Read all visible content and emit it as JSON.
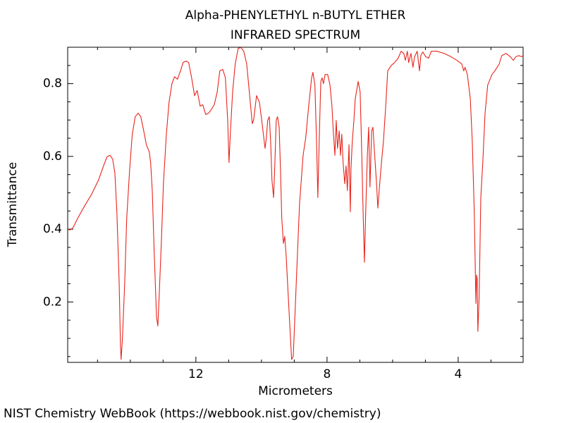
{
  "chart_data": {
    "type": "line",
    "title": "Alpha-PHENYLETHYL n-BUTYL ETHER",
    "subtitle": "INFRARED SPECTRUM",
    "xlabel": "Micrometers",
    "ylabel": "Transmittance",
    "source": "NIST Chemistry WebBook (https://webbook.nist.gov/chemistry)",
    "color": "#e8241c",
    "xlim": [
      15.91,
      2.02
    ],
    "ylim": [
      0.034,
      0.9
    ],
    "xticks": [
      12,
      8,
      4
    ],
    "yticks": [
      0.2,
      0.4,
      0.6,
      0.8
    ],
    "xminorticks": [
      15,
      14,
      13,
      11,
      10,
      9,
      7,
      6,
      5,
      3
    ],
    "yminorticks": [
      0.05,
      0.1,
      0.15,
      0.25,
      0.3,
      0.35,
      0.45,
      0.5,
      0.55,
      0.65,
      0.7,
      0.75,
      0.85
    ],
    "x": [
      15.91,
      15.83,
      15.74,
      15.61,
      15.4,
      15.18,
      14.97,
      14.8,
      14.71,
      14.62,
      14.54,
      14.47,
      14.41,
      14.34,
      14.3,
      14.28,
      14.24,
      14.17,
      14.11,
      14.02,
      13.94,
      13.85,
      13.76,
      13.68,
      13.59,
      13.51,
      13.42,
      13.38,
      13.33,
      13.27,
      13.2,
      13.16,
      13.12,
      13.05,
      12.99,
      12.9,
      12.82,
      12.73,
      12.65,
      12.56,
      12.47,
      12.39,
      12.3,
      12.22,
      12.13,
      12.04,
      11.96,
      11.87,
      11.79,
      11.7,
      11.61,
      11.53,
      11.44,
      11.35,
      11.27,
      11.18,
      11.1,
      11.03,
      10.99,
      10.95,
      10.88,
      10.8,
      10.71,
      10.62,
      10.54,
      10.45,
      10.37,
      10.28,
      10.24,
      10.15,
      10.06,
      9.98,
      9.89,
      9.85,
      9.81,
      9.76,
      9.72,
      9.68,
      9.63,
      9.59,
      9.55,
      9.51,
      9.46,
      9.42,
      9.38,
      9.33,
      9.29,
      9.25,
      9.16,
      9.08,
      9.03,
      8.99,
      8.92,
      8.84,
      8.73,
      8.65,
      8.56,
      8.47,
      8.43,
      8.37,
      8.32,
      8.28,
      8.24,
      8.19,
      8.15,
      8.11,
      8.06,
      7.98,
      7.91,
      7.85,
      7.81,
      7.76,
      7.72,
      7.68,
      7.63,
      7.59,
      7.55,
      7.51,
      7.46,
      7.42,
      7.38,
      7.33,
      7.29,
      7.27,
      7.23,
      7.18,
      7.14,
      7.05,
      6.99,
      6.95,
      6.9,
      6.86,
      6.82,
      6.77,
      6.73,
      6.69,
      6.64,
      6.6,
      6.56,
      6.49,
      6.45,
      6.41,
      6.34,
      6.28,
      6.21,
      6.15,
      6.04,
      5.94,
      5.83,
      5.74,
      5.66,
      5.61,
      5.55,
      5.51,
      5.44,
      5.38,
      5.33,
      5.25,
      5.18,
      5.14,
      5.08,
      4.99,
      4.9,
      4.82,
      4.65,
      4.43,
      4.22,
      4.04,
      3.89,
      3.83,
      3.79,
      3.72,
      3.63,
      3.57,
      3.51,
      3.46,
      3.44,
      3.42,
      3.4,
      3.36,
      3.31,
      3.25,
      3.18,
      3.1,
      2.97,
      2.88,
      2.75,
      2.67,
      2.54,
      2.41,
      2.32,
      2.24,
      2.15,
      2.07,
      2.02
    ],
    "values": [
      0.399,
      0.398,
      0.405,
      0.429,
      0.463,
      0.496,
      0.535,
      0.578,
      0.599,
      0.603,
      0.593,
      0.554,
      0.448,
      0.254,
      0.08,
      0.042,
      0.1,
      0.254,
      0.429,
      0.564,
      0.661,
      0.709,
      0.719,
      0.709,
      0.67,
      0.632,
      0.612,
      0.583,
      0.506,
      0.332,
      0.158,
      0.134,
      0.216,
      0.371,
      0.525,
      0.661,
      0.748,
      0.8,
      0.819,
      0.812,
      0.835,
      0.858,
      0.862,
      0.858,
      0.816,
      0.767,
      0.781,
      0.738,
      0.742,
      0.715,
      0.719,
      0.729,
      0.742,
      0.777,
      0.835,
      0.839,
      0.816,
      0.699,
      0.583,
      0.661,
      0.777,
      0.854,
      0.897,
      0.899,
      0.889,
      0.854,
      0.777,
      0.69,
      0.699,
      0.767,
      0.748,
      0.69,
      0.622,
      0.651,
      0.699,
      0.709,
      0.641,
      0.535,
      0.487,
      0.583,
      0.699,
      0.709,
      0.68,
      0.564,
      0.429,
      0.361,
      0.38,
      0.332,
      0.177,
      0.042,
      0.051,
      0.138,
      0.293,
      0.467,
      0.603,
      0.651,
      0.738,
      0.816,
      0.831,
      0.796,
      0.641,
      0.487,
      0.641,
      0.806,
      0.816,
      0.8,
      0.825,
      0.825,
      0.796,
      0.738,
      0.67,
      0.603,
      0.699,
      0.622,
      0.67,
      0.603,
      0.661,
      0.583,
      0.525,
      0.574,
      0.506,
      0.632,
      0.448,
      0.564,
      0.641,
      0.699,
      0.758,
      0.806,
      0.777,
      0.641,
      0.448,
      0.309,
      0.448,
      0.603,
      0.68,
      0.516,
      0.67,
      0.68,
      0.622,
      0.525,
      0.458,
      0.506,
      0.583,
      0.641,
      0.738,
      0.835,
      0.85,
      0.858,
      0.87,
      0.889,
      0.883,
      0.864,
      0.889,
      0.858,
      0.883,
      0.845,
      0.874,
      0.889,
      0.835,
      0.877,
      0.887,
      0.874,
      0.87,
      0.889,
      0.889,
      0.883,
      0.874,
      0.864,
      0.854,
      0.835,
      0.845,
      0.825,
      0.758,
      0.641,
      0.448,
      0.196,
      0.274,
      0.264,
      0.119,
      0.216,
      0.487,
      0.583,
      0.719,
      0.796,
      0.825,
      0.835,
      0.854,
      0.877,
      0.883,
      0.874,
      0.864,
      0.874,
      0.877,
      0.874,
      0.877
    ]
  }
}
